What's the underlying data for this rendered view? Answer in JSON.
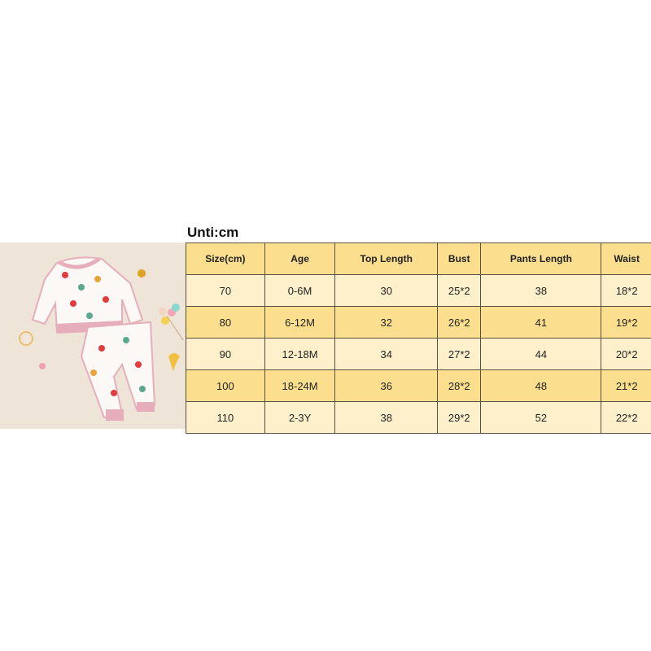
{
  "unit_label": "Unti:cm",
  "table": {
    "headers": [
      "Size(cm)",
      "Age",
      "Top Length",
      "Bust",
      "Pants Length",
      "Waist"
    ],
    "rows": [
      [
        "70",
        "0-6M",
        "30",
        "25*2",
        "38",
        "18*2"
      ],
      [
        "80",
        "6-12M",
        "32",
        "26*2",
        "41",
        "19*2"
      ],
      [
        "90",
        "12-18M",
        "34",
        "27*2",
        "44",
        "20*2"
      ],
      [
        "100",
        "18-24M",
        "36",
        "28*2",
        "48",
        "21*2"
      ],
      [
        "110",
        "2-3Y",
        "38",
        "29*2",
        "52",
        "22*2"
      ]
    ]
  },
  "colors": {
    "header": "#fbdf8e",
    "row_light": "#fdf0cb",
    "row_dark": "#fbdf8e",
    "photo_bg": "#efe4d8",
    "trim_pink": "#e6aebb"
  }
}
